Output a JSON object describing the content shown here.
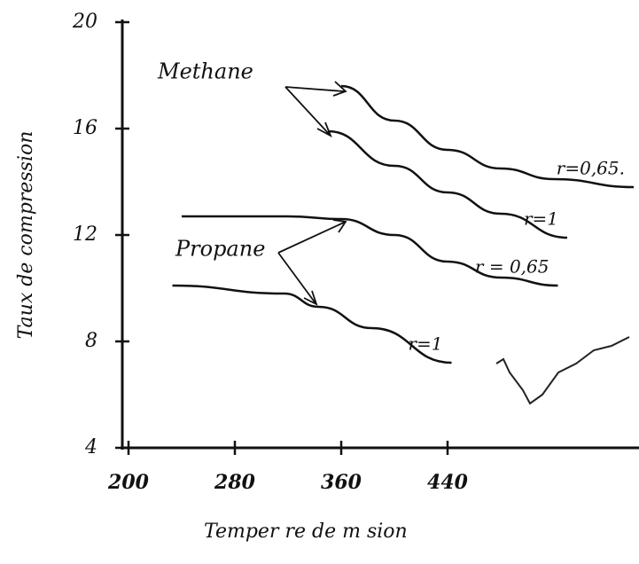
{
  "chart_data": {
    "type": "line",
    "ylabel": "Taux de compression",
    "xlabel": "Temper  re de  m  sion",
    "annotations": [
      "Methane",
      "Propane"
    ],
    "xlim": [
      200,
      584
    ],
    "xticks": [
      200,
      280,
      360,
      440
    ],
    "ylim": [
      4,
      20
    ],
    "yticks": [
      4,
      8,
      12,
      16,
      20
    ],
    "series": [
      {
        "name": "r=0,65.",
        "color": "#111111",
        "x": [
          360,
          400,
          440,
          480,
          520,
          580
        ],
        "values": [
          17.6,
          16.3,
          15.2,
          14.5,
          14.1,
          13.8
        ]
      },
      {
        "name": "r=1",
        "color": "#111111",
        "x": [
          350,
          400,
          440,
          480,
          530
        ],
        "values": [
          15.9,
          14.6,
          13.6,
          12.8,
          11.9
        ]
      },
      {
        "name": "r = 0,65",
        "color": "#111111",
        "x": [
          240,
          320,
          360,
          400,
          440,
          480,
          523
        ],
        "values": [
          12.7,
          12.7,
          12.6,
          12.0,
          11.0,
          10.4,
          10.1
        ]
      },
      {
        "name": "r=1",
        "color": "#111111",
        "x": [
          233,
          317,
          343,
          383,
          443
        ],
        "values": [
          10.1,
          9.8,
          9.3,
          8.5,
          7.2
        ]
      }
    ]
  }
}
